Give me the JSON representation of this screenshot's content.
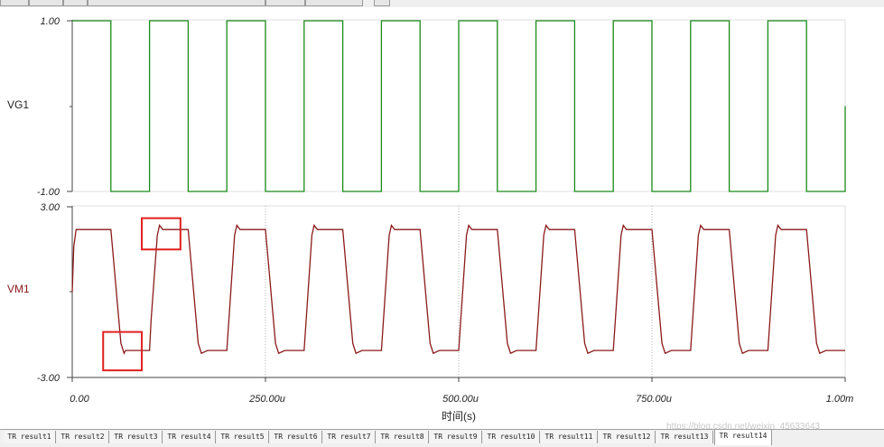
{
  "tabs": [
    "TR result1",
    "TR result2",
    "TR result3",
    "TR result4",
    "TR result5",
    "TR result6",
    "TR result7",
    "TR result8",
    "TR result9",
    "TR result10",
    "TR result11",
    "TR result12",
    "TR result13",
    "TR result14"
  ],
  "active_tab_index": 13,
  "watermark": "https://blog.csdn.net/weixin_45633643",
  "chart_data": [
    {
      "type": "line",
      "series": [
        {
          "name": "VG1",
          "color": "#1a8a1a",
          "waveform": "square",
          "period_s": 0.0001,
          "high_V": 1.0,
          "low_V": -1.0,
          "duty": 0.5
        }
      ],
      "ylabel": "VG1",
      "ylim": [
        -1.0,
        1.0
      ],
      "yticks": [
        "1.00",
        "-1.00"
      ],
      "xlim": [
        0,
        0.001
      ],
      "grid": false
    },
    {
      "type": "line",
      "series": [
        {
          "name": "VM1",
          "color": "#8b1a1a",
          "x": [
            0,
            2e-06,
            5e-06,
            5e-05,
            6.3e-05,
            6.7e-05,
            6.9e-05,
            7.5e-05,
            0.0001,
            0.000102,
            0.00011,
            0.000113,
            0.000117,
            0.00015,
            0.000163,
            0.000167,
            0.000175,
            0.0002,
            0.00021,
            0.000213,
            0.000217,
            0.00025,
            0.000263,
            0.000267,
            0.000275,
            0.0003,
            0.00031,
            0.000313,
            0.000317,
            0.00035,
            0.000363,
            0.000367,
            0.000375,
            0.0004,
            0.00041,
            0.000413,
            0.000417,
            0.00045,
            0.000463,
            0.000467,
            0.000475,
            0.0005,
            0.00051,
            0.000513,
            0.000517,
            0.00055,
            0.000563,
            0.000567,
            0.000575,
            0.0006,
            0.00061,
            0.000613,
            0.000617,
            0.00065,
            0.000663,
            0.000667,
            0.000675,
            0.0007,
            0.00071,
            0.000713,
            0.000717,
            0.00075,
            0.000763,
            0.000767,
            0.000775,
            0.0008,
            0.00081,
            0.000813,
            0.000817,
            0.00085,
            0.000863,
            0.000867,
            0.000875,
            0.0009,
            0.00091,
            0.000913,
            0.000917,
            0.00095,
            0.000963,
            0.000967,
            0.000975,
            0.001
          ],
          "y": [
            0,
            1.6,
            2.2,
            2.2,
            -1.8,
            -2.15,
            -2.05,
            -2.05,
            -2.05,
            -1.0,
            2.0,
            2.35,
            2.2,
            2.2,
            -1.8,
            -2.15,
            -2.05,
            -2.05,
            2.0,
            2.35,
            2.2,
            2.2,
            -1.8,
            -2.15,
            -2.05,
            -2.05,
            2.0,
            2.35,
            2.2,
            2.2,
            -1.8,
            -2.15,
            -2.05,
            -2.05,
            2.0,
            2.35,
            2.2,
            2.2,
            -1.8,
            -2.15,
            -2.05,
            -2.05,
            2.0,
            2.35,
            2.2,
            2.2,
            -1.8,
            -2.15,
            -2.05,
            -2.05,
            2.0,
            2.35,
            2.2,
            2.2,
            -1.8,
            -2.15,
            -2.05,
            -2.05,
            2.0,
            2.35,
            2.2,
            2.2,
            -1.8,
            -2.15,
            -2.05,
            -2.05,
            2.0,
            2.35,
            2.2,
            2.2,
            -1.8,
            -2.15,
            -2.05,
            -2.05,
            2.0,
            2.35,
            2.2,
            2.2,
            -1.8,
            -2.15,
            -2.05,
            -2.05
          ]
        }
      ],
      "ylabel": "VM1",
      "ylim": [
        -3.0,
        3.0
      ],
      "yticks": [
        "3.00",
        "-3.00"
      ],
      "xlabel": "时间(s)",
      "xticks": [
        "0.00",
        "250.00u",
        "500.00u",
        "750.00u",
        "1.00m"
      ],
      "xlim": [
        0,
        0.001
      ],
      "grid": "vertical dotted",
      "annotations": [
        {
          "type": "highlight-box",
          "color": "#e02020",
          "x": [
            9e-05,
            0.00014
          ],
          "y": [
            1.5,
            2.6
          ]
        },
        {
          "type": "highlight-box",
          "color": "#e02020",
          "x": [
            4e-05,
            9e-05
          ],
          "y": [
            -2.75,
            -1.4
          ]
        }
      ]
    }
  ]
}
